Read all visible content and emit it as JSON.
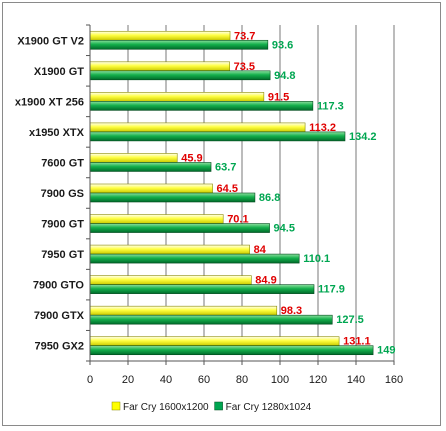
{
  "chart_data": {
    "type": "bar",
    "orientation": "horizontal",
    "categories": [
      "X1900 GT V2",
      "X1900 GT",
      "x1900 XT 256",
      "x1950 XTX",
      "7600 GT",
      "7900 GS",
      "7900 GT",
      "7950 GT",
      "7900 GTO",
      "7900 GTX",
      "7950 GX2"
    ],
    "series": [
      {
        "name": "Far Cry 1600x1200",
        "values": [
          73.7,
          73.5,
          91.5,
          113.2,
          45.9,
          64.5,
          70.1,
          84,
          84.9,
          98.3,
          131.1
        ],
        "labels": [
          "73.7",
          "73.5",
          "91.5",
          "113.2",
          "45.9",
          "64.5",
          "70.1",
          "84",
          "84.9",
          "98.3",
          "131.1"
        ],
        "color": "#ffff00",
        "label_color": "#e00000"
      },
      {
        "name": "Far Cry 1280x1024",
        "values": [
          93.6,
          94.8,
          117.3,
          134.2,
          63.7,
          86.8,
          94.5,
          110.1,
          117.9,
          127.5,
          149
        ],
        "labels": [
          "93.6",
          "94.8",
          "117.3",
          "134.2",
          "63.7",
          "86.8",
          "94.5",
          "110.1",
          "117.9",
          "127.5",
          "149"
        ],
        "color": "#00a651",
        "label_color": "#00a651"
      }
    ],
    "xlim": [
      0,
      160
    ],
    "xticks": [
      0,
      20,
      40,
      60,
      80,
      100,
      120,
      140,
      160
    ],
    "xtick_labels": [
      "0",
      "20",
      "40",
      "60",
      "80",
      "100",
      "120",
      "140",
      "160"
    ],
    "grid": true,
    "legend_position": "bottom"
  }
}
